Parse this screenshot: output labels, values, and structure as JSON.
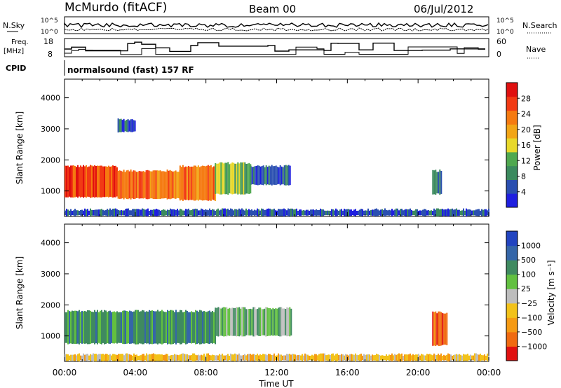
{
  "header": {
    "station": "McMurdo (fitACF)",
    "beam": "Beam 00",
    "date": "06/Jul/2012"
  },
  "top_panels": {
    "noise_left_label": "N.Sky",
    "noise_right_label": "N.Search",
    "noise_ticks_left": [
      "10^5",
      "10^0"
    ],
    "noise_ticks_right": [
      "10^5",
      "10^0"
    ],
    "freq_label_1": "Freq.",
    "freq_label_2": "[MHz]",
    "freq_ticks": [
      "18",
      "8"
    ],
    "nave_label": "Nave",
    "nave_ticks": [
      "60",
      "0"
    ],
    "cpid_label": "CPID",
    "cpid_value": "normalsound (fast) 157 RF"
  },
  "colors": {
    "power_scale": [
      "#1f1fe0",
      "#2a4fb0",
      "#3b8a5e",
      "#4fa84f",
      "#e8d82a",
      "#f2a516",
      "#f57a10",
      "#f23a14",
      "#e01010"
    ],
    "velocity_scale": [
      "#2244c0",
      "#3566a8",
      "#3f8a60",
      "#62c040",
      "#bdbdbd",
      "#f2c21a",
      "#f59a14",
      "#f06a10",
      "#e01010"
    ]
  },
  "chart_data": [
    {
      "type": "heatmap",
      "ylabel": "Slant Range [km]",
      "ylim": [
        180,
        4600
      ],
      "yticks": [
        "1000",
        "2000",
        "3000",
        "4000"
      ],
      "xlim": [
        0,
        24
      ],
      "colorbar_label": "Power [dB]",
      "colorbar_ticks": [
        "4",
        "8",
        "12",
        "16",
        "20",
        "24",
        "28"
      ],
      "regions": [
        {
          "t0": 0.0,
          "t1": 3.0,
          "r0": 800,
          "r1": 1800,
          "level": 7
        },
        {
          "t0": 3.0,
          "t1": 6.5,
          "r0": 750,
          "r1": 1650,
          "level": 6
        },
        {
          "t0": 6.5,
          "t1": 8.5,
          "r0": 700,
          "r1": 1800,
          "level": 6
        },
        {
          "t0": 8.5,
          "t1": 10.5,
          "r0": 900,
          "r1": 1900,
          "level": 3
        },
        {
          "t0": 10.5,
          "t1": 12.8,
          "r0": 1200,
          "r1": 1800,
          "level": 1
        },
        {
          "t0": 20.8,
          "t1": 21.3,
          "r0": 900,
          "r1": 1650,
          "level": 2
        },
        {
          "t0": 3.0,
          "t1": 4.0,
          "r0": 2900,
          "r1": 3300,
          "level": 1
        },
        {
          "t0": 0.0,
          "t1": 24.0,
          "r0": 200,
          "r1": 400,
          "level": 1
        }
      ]
    },
    {
      "type": "heatmap",
      "ylabel": "Slant Range [km]",
      "ylim": [
        180,
        4600
      ],
      "yticks": [
        "1000",
        "2000",
        "3000",
        "4000"
      ],
      "xlim": [
        0,
        24
      ],
      "xticks": [
        "00:00",
        "04:00",
        "08:00",
        "12:00",
        "16:00",
        "20:00",
        "00:00"
      ],
      "xlabel": "Time UT",
      "colorbar_label": "Velocity [m s⁻¹]",
      "colorbar_ticks": [
        "1000",
        "500",
        "100",
        "25",
        "−25",
        "−100",
        "−500",
        "−1000"
      ],
      "regions": [
        {
          "t0": 0.0,
          "t1": 8.5,
          "r0": 750,
          "r1": 1800,
          "level": 2
        },
        {
          "t0": 8.5,
          "t1": 12.8,
          "r0": 1000,
          "r1": 1900,
          "level": 3
        },
        {
          "t0": 20.8,
          "t1": 21.6,
          "r0": 700,
          "r1": 1750,
          "level": 7
        },
        {
          "t0": 0.0,
          "t1": 24.0,
          "r0": 200,
          "r1": 400,
          "level": 5
        }
      ]
    }
  ]
}
